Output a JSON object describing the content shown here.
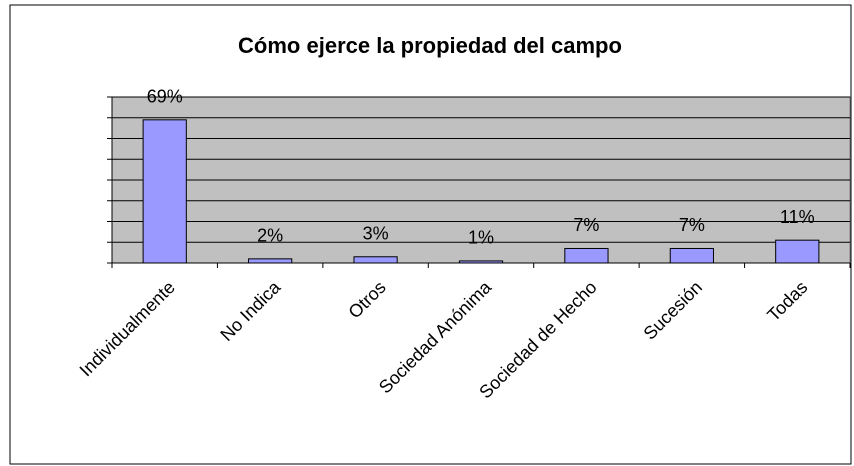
{
  "chart_data": {
    "type": "bar",
    "title": "Cómo ejerce la propiedad del campo",
    "categories": [
      "Individualmente",
      "No Indica",
      "Otros",
      "Sociedad Anónima",
      "Sociedad de Hecho",
      "Sucesión",
      "Todas"
    ],
    "values": [
      69,
      2,
      3,
      1,
      7,
      7,
      11
    ],
    "value_labels": [
      "69%",
      "2%",
      "3%",
      "1%",
      "7%",
      "7%",
      "11%"
    ],
    "color": "#9999ff",
    "ylim": [
      0,
      80
    ],
    "yticks": [
      0,
      10,
      20,
      30,
      40,
      50,
      60,
      70,
      80
    ],
    "grid": true
  }
}
